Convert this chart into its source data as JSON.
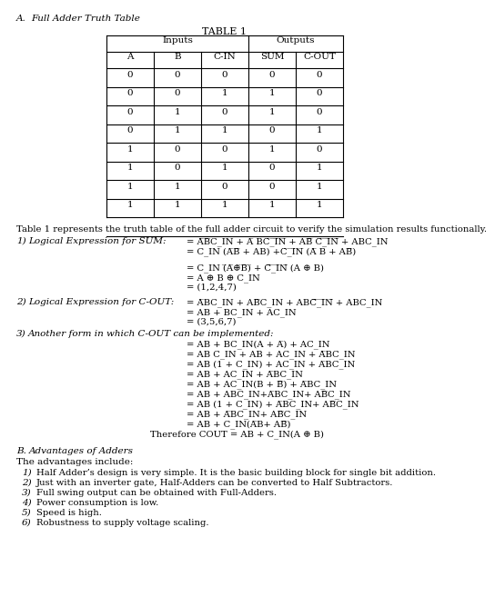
{
  "table_data": [
    [
      0,
      0,
      0,
      0,
      0
    ],
    [
      0,
      0,
      1,
      1,
      0
    ],
    [
      0,
      1,
      0,
      1,
      0
    ],
    [
      0,
      1,
      1,
      0,
      1
    ],
    [
      1,
      0,
      0,
      1,
      0
    ],
    [
      1,
      0,
      1,
      0,
      1
    ],
    [
      1,
      1,
      0,
      0,
      1
    ],
    [
      1,
      1,
      1,
      1,
      1
    ]
  ],
  "intro_text": "Table 1 represents the truth table of the full adder circuit to verify the simulation results functionally.",
  "adv_intro": "The advantages include:",
  "advantages": [
    "Half Adder’s design is very simple. It is the basic building block for single bit addition.",
    "Just with an inverter gate, Half-Adders can be converted to Half Subtractors.",
    "Full swing output can be obtained with Full-Adders.",
    "Power consumption is low.",
    "Speed is high.",
    "Robustness to supply voltage scaling."
  ],
  "background_color": "#ffffff",
  "text_color": "#000000"
}
